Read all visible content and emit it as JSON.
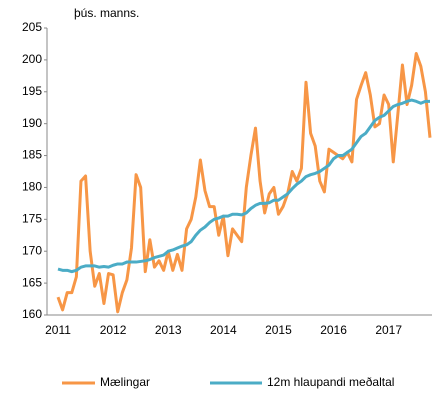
{
  "chart_data": {
    "type": "line",
    "y_label": "þús. manns.",
    "categories": [
      "2011",
      null,
      null,
      null,
      null,
      null,
      null,
      null,
      null,
      null,
      null,
      null,
      "2012",
      null,
      null,
      null,
      null,
      null,
      null,
      null,
      null,
      null,
      null,
      null,
      "2013",
      null,
      null,
      null,
      null,
      null,
      null,
      null,
      null,
      null,
      null,
      null,
      "2014",
      null,
      null,
      null,
      null,
      null,
      null,
      null,
      null,
      null,
      null,
      null,
      "2015",
      null,
      null,
      null,
      null,
      null,
      null,
      null,
      null,
      null,
      null,
      null,
      "2016",
      null,
      null,
      null,
      null,
      null,
      null,
      null,
      null,
      null,
      null,
      null,
      "2017",
      null,
      null,
      null,
      null,
      null,
      null,
      null,
      null,
      null
    ],
    "series": [
      {
        "name": "Mælingar",
        "color": "#f79646",
        "values": [
          162.8,
          160.8,
          163.5,
          163.5,
          166,
          181,
          181.8,
          170,
          164.5,
          166.5,
          161.8,
          166.5,
          166.3,
          160.5,
          163.5,
          165.5,
          170.5,
          182,
          180,
          166.8,
          171.8,
          167.5,
          168.5,
          167,
          170,
          167,
          169.5,
          167,
          173.5,
          175,
          178.5,
          184.3,
          179.5,
          177,
          177,
          172.5,
          175.5,
          169.3,
          173.5,
          172.5,
          171.5,
          180,
          185,
          189.3,
          181,
          176,
          179,
          180,
          175.8,
          177,
          179,
          182.5,
          181,
          183,
          196.5,
          188.5,
          186.5,
          181,
          179.3,
          186,
          185.5,
          185,
          184.5,
          185.5,
          184,
          193.8,
          196,
          198,
          194.5,
          189.5,
          190,
          194.5,
          193,
          184,
          191.5,
          199.2,
          193,
          196,
          201,
          199,
          195,
          187.8
        ]
      },
      {
        "name": "12m hlaupandi meðaltal",
        "color": "#4bacc6",
        "values": [
          167.2,
          167,
          167,
          166.8,
          167,
          167.5,
          167.7,
          167.7,
          167.7,
          167.5,
          167.6,
          167.5,
          167.8,
          168,
          168,
          168.3,
          168.3,
          168.3,
          168.4,
          168.5,
          168.7,
          169,
          169.2,
          169.4,
          170,
          170.2,
          170.5,
          170.8,
          171,
          171.5,
          172.5,
          173.3,
          173.8,
          174.5,
          175,
          175.2,
          175.5,
          175.5,
          175.8,
          175.8,
          175.7,
          176,
          176.7,
          177.2,
          177.5,
          177.5,
          177.6,
          178,
          178,
          178.5,
          179,
          179.8,
          180.5,
          181,
          181.7,
          182,
          182.2,
          182.5,
          183,
          183.5,
          184.5,
          185,
          185,
          185.5,
          186,
          187,
          188,
          188.5,
          189.5,
          190.5,
          191,
          191.3,
          192,
          192.7,
          193,
          193.2,
          193.5,
          193.7,
          193.5,
          193.2,
          193.5,
          193.5
        ]
      }
    ],
    "ylim": [
      160,
      205
    ],
    "yticks": [
      160,
      165,
      170,
      175,
      180,
      185,
      190,
      195,
      200,
      205
    ],
    "grid": false,
    "legend": "bottom"
  }
}
